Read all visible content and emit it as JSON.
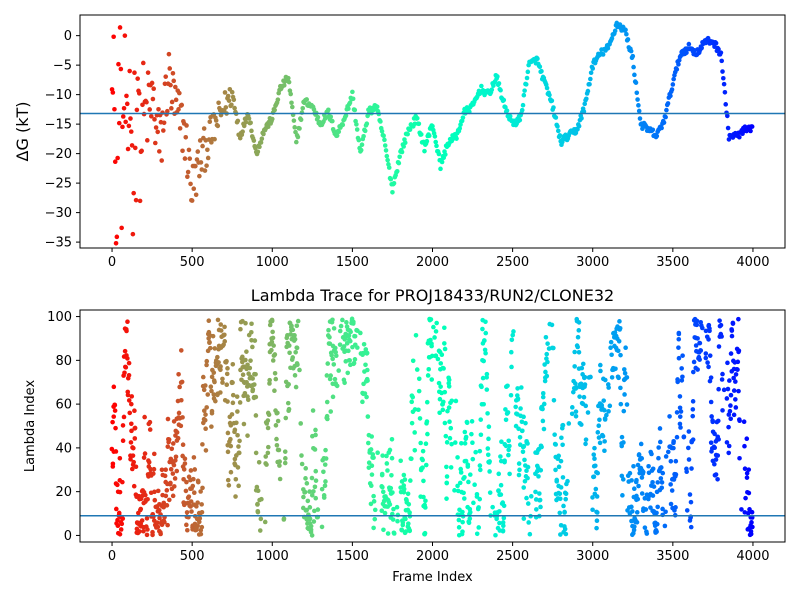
{
  "chart_data": [
    {
      "type": "scatter",
      "title": "",
      "xlabel": "",
      "ylabel": "ΔG (kT)",
      "xlim": [
        -200,
        4200
      ],
      "ylim": [
        -36,
        3.5
      ],
      "x_ticks": [
        0,
        500,
        1000,
        1500,
        2000,
        2500,
        3000,
        3500,
        4000
      ],
      "y_ticks": [
        0,
        -5,
        -10,
        -15,
        -20,
        -25,
        -30,
        -35
      ],
      "x_tick_labels": [
        "0",
        "500",
        "1000",
        "1500",
        "2000",
        "2500",
        "3000",
        "3500",
        "4000"
      ],
      "y_tick_labels": [
        "0",
        "−5",
        "−10",
        "−15",
        "−20",
        "−25",
        "−30",
        "−35"
      ],
      "hline": -13.2,
      "hline_color": "#1f77b4",
      "colormap": "rainbow_reversed_by_frame",
      "frames": 4000,
      "series": [
        {
          "x": [
            0,
            10,
            20,
            30,
            40,
            50,
            60,
            70,
            80,
            90,
            100,
            110,
            120,
            130,
            140,
            150,
            160,
            170,
            180,
            190,
            200,
            250,
            300,
            350,
            400,
            450,
            500,
            550,
            600,
            650,
            700,
            750,
            800,
            850,
            900,
            950,
            1000,
            1050,
            1100,
            1150,
            1200,
            1250,
            1300,
            1350,
            1400,
            1450,
            1500,
            1550,
            1600,
            1650,
            1700,
            1750,
            1800,
            1850,
            1900,
            1950,
            2000,
            2050,
            2100,
            2150,
            2200,
            2250,
            2300,
            2350,
            2400,
            2450,
            2500,
            2550,
            2600,
            2650,
            2700,
            2750,
            2800,
            2850,
            2900,
            2950,
            3000,
            3050,
            3100,
            3150,
            3200,
            3250,
            3300,
            3350,
            3400,
            3450,
            3500,
            3550,
            3600,
            3650,
            3700,
            3750,
            3800,
            3850,
            3900,
            3950,
            4000
          ],
          "values": [
            0,
            -1,
            -29,
            -35,
            -10,
            -3,
            -25,
            -13,
            -8,
            -18,
            -22,
            -6,
            -15,
            -28,
            -12,
            -20,
            -4,
            -17,
            -24,
            -9,
            -14,
            -11,
            -19,
            -7,
            -13,
            -16,
            -26,
            -21,
            -18,
            -15,
            -12,
            -10,
            -17,
            -13,
            -20,
            -16,
            -14,
            -9,
            -7,
            -18,
            -11,
            -12,
            -15,
            -13,
            -17,
            -14,
            -10,
            -20,
            -13,
            -12,
            -18,
            -26,
            -20,
            -16,
            -14,
            -19,
            -15,
            -22,
            -18,
            -17,
            -13,
            -12,
            -9,
            -10,
            -7,
            -12,
            -15,
            -14,
            -5,
            -4,
            -8,
            -12,
            -18,
            -17,
            -16,
            -12,
            -5,
            -3,
            -2,
            2,
            1,
            -4,
            -15,
            -16,
            -17,
            -14,
            -8,
            -3,
            -2,
            -3,
            -1,
            -1,
            -3,
            -17,
            -17,
            -16,
            -16
          ]
        }
      ]
    },
    {
      "type": "scatter",
      "title": "Lambda Trace for PROJ18433/RUN2/CLONE32",
      "xlabel": "Frame Index",
      "ylabel": "Lambda Index",
      "xlim": [
        -200,
        4200
      ],
      "ylim": [
        -3,
        103
      ],
      "x_ticks": [
        0,
        500,
        1000,
        1500,
        2000,
        2500,
        3000,
        3500,
        4000
      ],
      "y_ticks": [
        0,
        20,
        40,
        60,
        80,
        100
      ],
      "x_tick_labels": [
        "0",
        "500",
        "1000",
        "1500",
        "2000",
        "2500",
        "3000",
        "3500",
        "4000"
      ],
      "y_tick_labels": [
        "0",
        "20",
        "40",
        "60",
        "80",
        "100"
      ],
      "hline": 9,
      "hline_color": "#1f77b4",
      "colormap": "rainbow_reversed_by_frame",
      "frames": 4000,
      "lambda_range": [
        0,
        99
      ]
    }
  ]
}
